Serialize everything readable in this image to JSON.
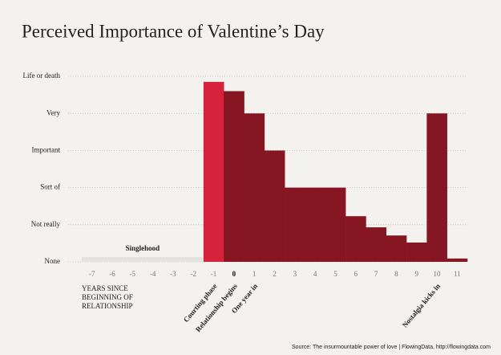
{
  "chart_data": {
    "type": "bar",
    "title": "Perceived Importance of Valentine’s Day",
    "x_label_lines": [
      "YEARS SINCE",
      "BEGINNING OF",
      "RELATIONSHIP"
    ],
    "source": "Source: The insurmountable power of love | FlowingData, http://flowingdata.com",
    "x": [
      -7,
      -6,
      -5,
      -4,
      -3,
      -2,
      -1,
      0,
      1,
      2,
      3,
      4,
      5,
      6,
      7,
      8,
      9,
      10,
      11
    ],
    "values": [
      0.13,
      0.13,
      0.13,
      0.13,
      0.13,
      0.13,
      4.85,
      4.6,
      4,
      3,
      2,
      2,
      2,
      1.23,
      0.93,
      0.71,
      0.52,
      4,
      0.09
    ],
    "colors": [
      "#e4e3e0",
      "#e4e3e0",
      "#e4e3e0",
      "#e4e3e0",
      "#e4e3e0",
      "#e4e3e0",
      "#d6223a",
      "#861622",
      "#861622",
      "#861622",
      "#861622",
      "#861622",
      "#861622",
      "#861622",
      "#861622",
      "#861622",
      "#861622",
      "#861622",
      "#861622"
    ],
    "region_label": "Singlehood",
    "annotations": [
      {
        "text": "Courting phase",
        "x": -1
      },
      {
        "text": "Relationship begins",
        "x": 0
      },
      {
        "text": "One year in",
        "x": 1
      },
      {
        "text": "Nostalgia kicks in",
        "x": 10
      }
    ],
    "xlim": [
      -7.5,
      11.5
    ],
    "xticks": [
      -7,
      -6,
      -5,
      -4,
      -3,
      -2,
      -1,
      0,
      1,
      2,
      3,
      4,
      5,
      6,
      7,
      8,
      9,
      10,
      11
    ],
    "bold_xtick": 0,
    "ylim": [
      0,
      5
    ],
    "yticks": [
      {
        "value": 0,
        "label": "None"
      },
      {
        "value": 1,
        "label": "Not really"
      },
      {
        "value": 2,
        "label": "Sort of"
      },
      {
        "value": 3,
        "label": "Important"
      },
      {
        "value": 4,
        "label": "Very"
      },
      {
        "value": 5,
        "label": "Life or death"
      }
    ],
    "grid": true
  }
}
